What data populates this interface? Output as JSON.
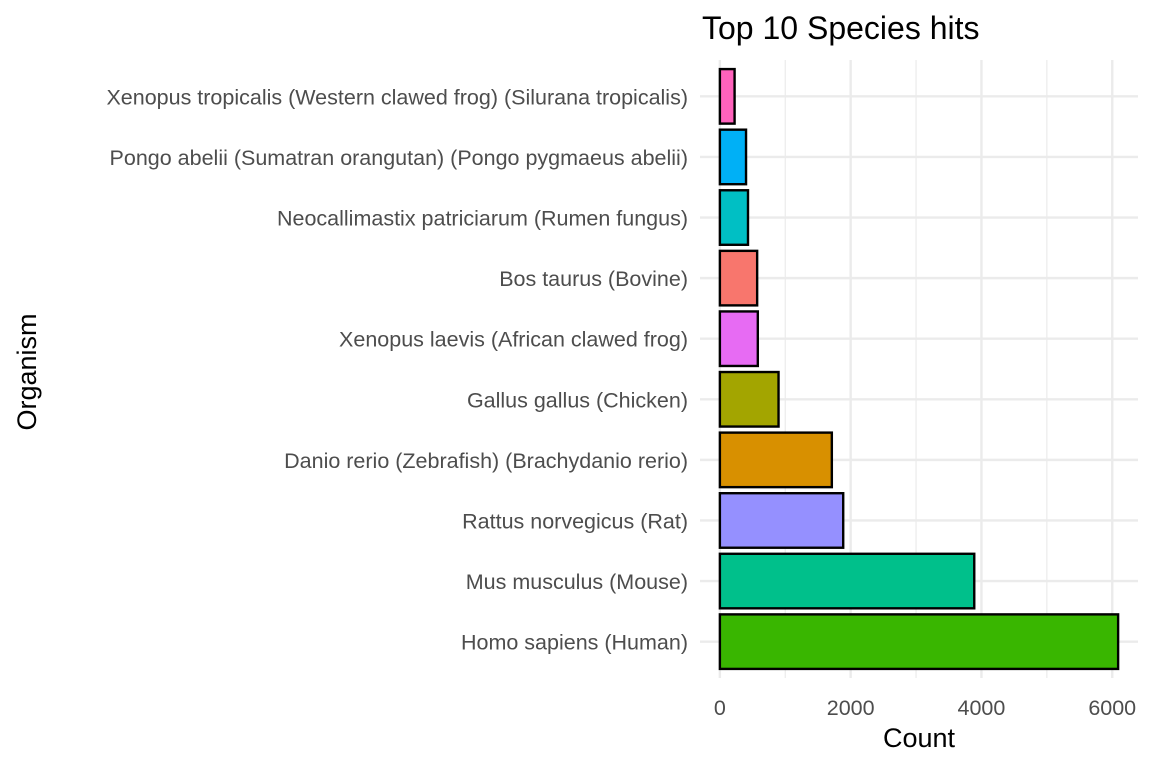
{
  "chart_data": {
    "type": "bar",
    "orientation": "horizontal",
    "title": "Top 10 Species hits",
    "xlabel": "Count",
    "ylabel": "Organism",
    "xlim": [
      -304,
      6394
    ],
    "x_ticks": [
      0,
      2000,
      4000,
      6000
    ],
    "x_tick_labels": [
      "0",
      "2000",
      "4000",
      "6000"
    ],
    "grid": true,
    "legend": "none",
    "categories": [
      "Homo sapiens (Human)",
      "Mus musculus (Mouse)",
      "Rattus norvegicus (Rat)",
      "Danio rerio (Zebrafish) (Brachydanio rerio)",
      "Gallus gallus (Chicken)",
      "Xenopus laevis (African clawed frog)",
      "Bos taurus (Bovine)",
      "Neocallimastix patriciarum (Rumen fungus)",
      "Pongo abelii (Sumatran orangutan) (Pongo pygmaeus abelii)",
      "Xenopus tropicalis (Western clawed frog) (Silurana tropicalis)"
    ],
    "values": [
      6090,
      3890,
      1886,
      1712,
      897,
      580,
      570,
      430,
      400,
      225
    ],
    "colors": [
      "#39B600",
      "#00C08B",
      "#9590FF",
      "#D89000",
      "#A3A500",
      "#E76BF3",
      "#F8766D",
      "#00BFC4",
      "#00B0F6",
      "#FF62BC"
    ]
  }
}
